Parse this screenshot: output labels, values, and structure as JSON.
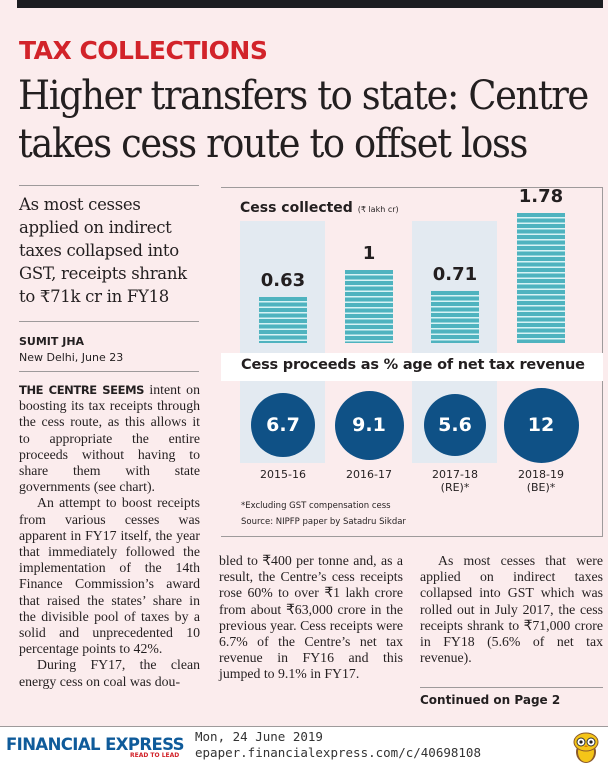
{
  "kicker": "TAX COLLECTIONS",
  "headline": [
    "Higher transfers to state: Centre",
    "takes cess route to offset loss"
  ],
  "standfirst": "As most cesses applied on indirect taxes collapsed into GST, receipts shrank to ₹71k cr in FY18",
  "byline": {
    "name": "SUMIT JHA",
    "place": "New Delhi, June 23"
  },
  "article": {
    "col1": {
      "lead_in": "THE CENTRE SEEMS",
      "p1": " intent on boosting its tax receipts through the cess route, as this allows it to appropriate the entire proceeds without having to share them with state governments (see chart).",
      "p2": "An attempt to boost receipts from various cesses was apparent in FY17 itself, the year that immediately followed the implementation of the 14th Finance Commission’s award that raised the states’ share in the divisible pool of taxes by a solid and unprecedented 10 percentage points to 42%.",
      "p3": "During FY17, the clean energy cess on coal was dou-"
    },
    "col2": {
      "p1": "bled to ₹400 per tonne and, as a result, the Centre’s cess receipts rose 60% to over ₹1 lakh crore from about ₹63,000 crore in the previous year. Cess receipts were 6.7% of the Centre’s net tax revenue in FY16 and this jumped to 9.1% in FY17."
    },
    "col3": {
      "p1": "As most cesses that were applied on indirect taxes collapsed into GST which was rolled out in July 2017, the cess receipts shrank to ₹71,000 crore in FY18 (5.6% of net tax revenue).",
      "continued": "Continued on Page 2"
    }
  },
  "chart_data": [
    {
      "type": "bar",
      "title": "Cess collected",
      "unit": "(₹ lakh cr)",
      "categories": [
        "2015-16",
        "2016-17",
        "2017-18 (RE)*",
        "2018-19 (BE)*"
      ],
      "values": [
        0.63,
        1,
        0.71,
        1.78
      ],
      "labels": [
        "0.63",
        "1",
        "0.71",
        "1.78"
      ],
      "ylim": [
        0,
        1.78
      ],
      "bar_color": "#4fb3bf"
    },
    {
      "type": "scatter",
      "title": "Cess proceeds as % age of net tax revenue",
      "categories": [
        "2015-16",
        "2016-17",
        "2017-18 (RE)*",
        "2018-19 (BE)*"
      ],
      "values": [
        6.7,
        9.1,
        5.6,
        12
      ],
      "labels": [
        "6.7",
        "9.1",
        "5.6",
        "12"
      ],
      "bubble_color": "#0f5186"
    }
  ],
  "chart_years": [
    {
      "line1": "2015-16",
      "line2": ""
    },
    {
      "line1": "2016-17",
      "line2": ""
    },
    {
      "line1": "2017-18",
      "line2": "(RE)*"
    },
    {
      "line1": "2018-19",
      "line2": "(BE)*"
    }
  ],
  "chart_notes": {
    "footnote": "*Excluding GST compensation cess",
    "source": "Source: NIPFP paper by Satadru Sikdar"
  },
  "footer": {
    "brand": "FINANCIAL EXPRESS",
    "tagline": "READ TO LEAD",
    "date": "Mon, 24 June 2019",
    "url": "epaper.financialexpress.com/c/40698108",
    "mascot": "owl-icon"
  },
  "colors": {
    "kicker": "#d2232a",
    "brand": "#0f5b9a",
    "bar": "#4fb3bf",
    "bubble": "#0f5186",
    "background": "#fbeced"
  }
}
